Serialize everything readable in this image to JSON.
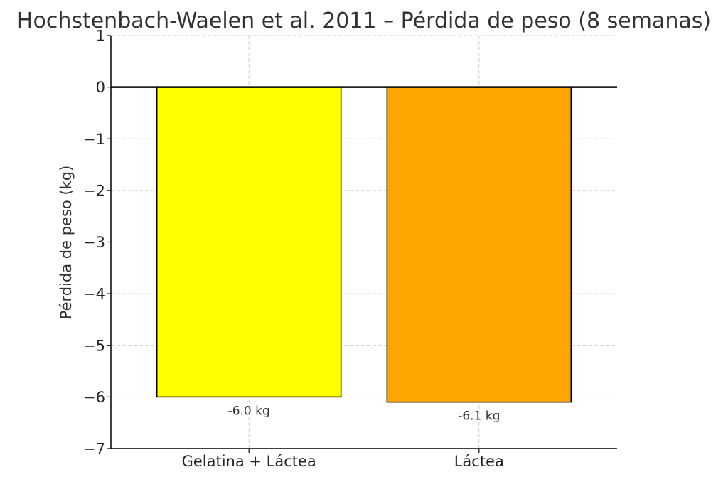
{
  "chart_data": {
    "type": "bar",
    "title": "Hochstenbach-Waelen et al. 2011 – Pérdida de peso (8 semanas)",
    "xlabel": "",
    "ylabel": "Pérdida de peso (kg)",
    "categories": [
      "Gelatina + Láctea",
      "Láctea"
    ],
    "values": [
      -6.0,
      -6.1
    ],
    "data_labels": [
      "-6.0 kg",
      "-6.1 kg"
    ],
    "colors": [
      "#ffff00",
      "#ffa500"
    ],
    "edge_color": "#000000",
    "ylim": [
      -7,
      1
    ],
    "yticks": [
      1,
      0,
      -1,
      -2,
      -3,
      -4,
      -5,
      -6,
      -7
    ],
    "ytick_labels": [
      "1",
      "0",
      "−1",
      "−2",
      "−3",
      "−4",
      "−5",
      "−6",
      "−7"
    ],
    "grid": true,
    "zero_line": true
  }
}
